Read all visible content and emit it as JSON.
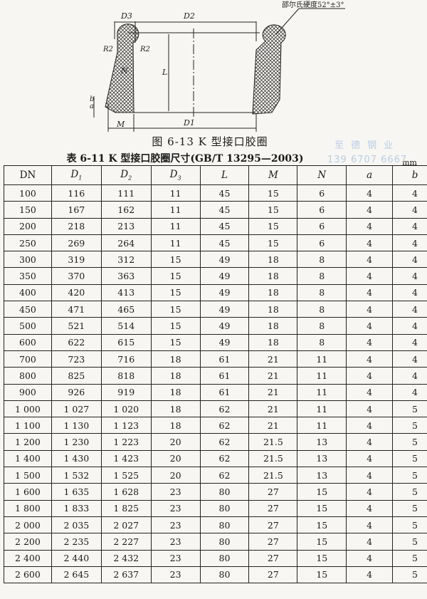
{
  "figure": {
    "labels": {
      "D3": "D3",
      "D2": "D2",
      "D1": "D1",
      "L": "L",
      "M": "M",
      "N": "N",
      "R2_left": "R2",
      "R2_right": "R2",
      "a": "a",
      "b": "b"
    },
    "hardness_note": "邵尔氏硬度52°±3°",
    "caption": "图 6-13   K 型接口胶圈"
  },
  "table": {
    "title": "表 6-11   K 型接口胶圈尺寸(GB/T 13295—2003)",
    "unit": "mm",
    "headers": [
      {
        "main": "DN",
        "sub": ""
      },
      {
        "main": "D",
        "sub": "1"
      },
      {
        "main": "D",
        "sub": "2"
      },
      {
        "main": "D",
        "sub": "3"
      },
      {
        "main": "L",
        "sub": ""
      },
      {
        "main": "M",
        "sub": ""
      },
      {
        "main": "N",
        "sub": ""
      },
      {
        "main": "a",
        "sub": ""
      },
      {
        "main": "b",
        "sub": ""
      }
    ],
    "rows": [
      [
        "100",
        "116",
        "111",
        "11",
        "45",
        "15",
        "6",
        "4",
        "4"
      ],
      [
        "150",
        "167",
        "162",
        "11",
        "45",
        "15",
        "6",
        "4",
        "4"
      ],
      [
        "200",
        "218",
        "213",
        "11",
        "45",
        "15",
        "6",
        "4",
        "4"
      ],
      [
        "250",
        "269",
        "264",
        "11",
        "45",
        "15",
        "6",
        "4",
        "4"
      ],
      [
        "300",
        "319",
        "312",
        "15",
        "49",
        "18",
        "8",
        "4",
        "4"
      ],
      [
        "350",
        "370",
        "363",
        "15",
        "49",
        "18",
        "8",
        "4",
        "4"
      ],
      [
        "400",
        "420",
        "413",
        "15",
        "49",
        "18",
        "8",
        "4",
        "4"
      ],
      [
        "450",
        "471",
        "465",
        "15",
        "49",
        "18",
        "8",
        "4",
        "4"
      ],
      [
        "500",
        "521",
        "514",
        "15",
        "49",
        "18",
        "8",
        "4",
        "4"
      ],
      [
        "600",
        "622",
        "615",
        "15",
        "49",
        "18",
        "8",
        "4",
        "4"
      ],
      [
        "700",
        "723",
        "716",
        "18",
        "61",
        "21",
        "11",
        "4",
        "4"
      ],
      [
        "800",
        "825",
        "818",
        "18",
        "61",
        "21",
        "11",
        "4",
        "4"
      ],
      [
        "900",
        "926",
        "919",
        "18",
        "61",
        "21",
        "11",
        "4",
        "4"
      ],
      [
        "1 000",
        "1 027",
        "1 020",
        "18",
        "62",
        "21",
        "11",
        "4",
        "5"
      ],
      [
        "1 100",
        "1 130",
        "1 123",
        "18",
        "62",
        "21",
        "11",
        "4",
        "5"
      ],
      [
        "1 200",
        "1 230",
        "1 223",
        "20",
        "62",
        "21.5",
        "13",
        "4",
        "5"
      ],
      [
        "1 400",
        "1 430",
        "1 423",
        "20",
        "62",
        "21.5",
        "13",
        "4",
        "5"
      ],
      [
        "1 500",
        "1 532",
        "1 525",
        "20",
        "62",
        "21.5",
        "13",
        "4",
        "5"
      ],
      [
        "1 600",
        "1 635",
        "1 628",
        "23",
        "80",
        "27",
        "15",
        "4",
        "5"
      ],
      [
        "1 800",
        "1 833",
        "1 825",
        "23",
        "80",
        "27",
        "15",
        "4",
        "5"
      ],
      [
        "2 000",
        "2 035",
        "2 027",
        "23",
        "80",
        "27",
        "15",
        "4",
        "5"
      ],
      [
        "2 200",
        "2 235",
        "2 227",
        "23",
        "80",
        "27",
        "15",
        "4",
        "5"
      ],
      [
        "2 400",
        "2 440",
        "2 432",
        "23",
        "80",
        "27",
        "15",
        "4",
        "5"
      ],
      [
        "2 600",
        "2 645",
        "2 637",
        "23",
        "80",
        "27",
        "15",
        "4",
        "5"
      ]
    ]
  },
  "watermark": {
    "name": "至德钢业",
    "phone": "139 6707 6667",
    "color": "#b9cde6"
  }
}
